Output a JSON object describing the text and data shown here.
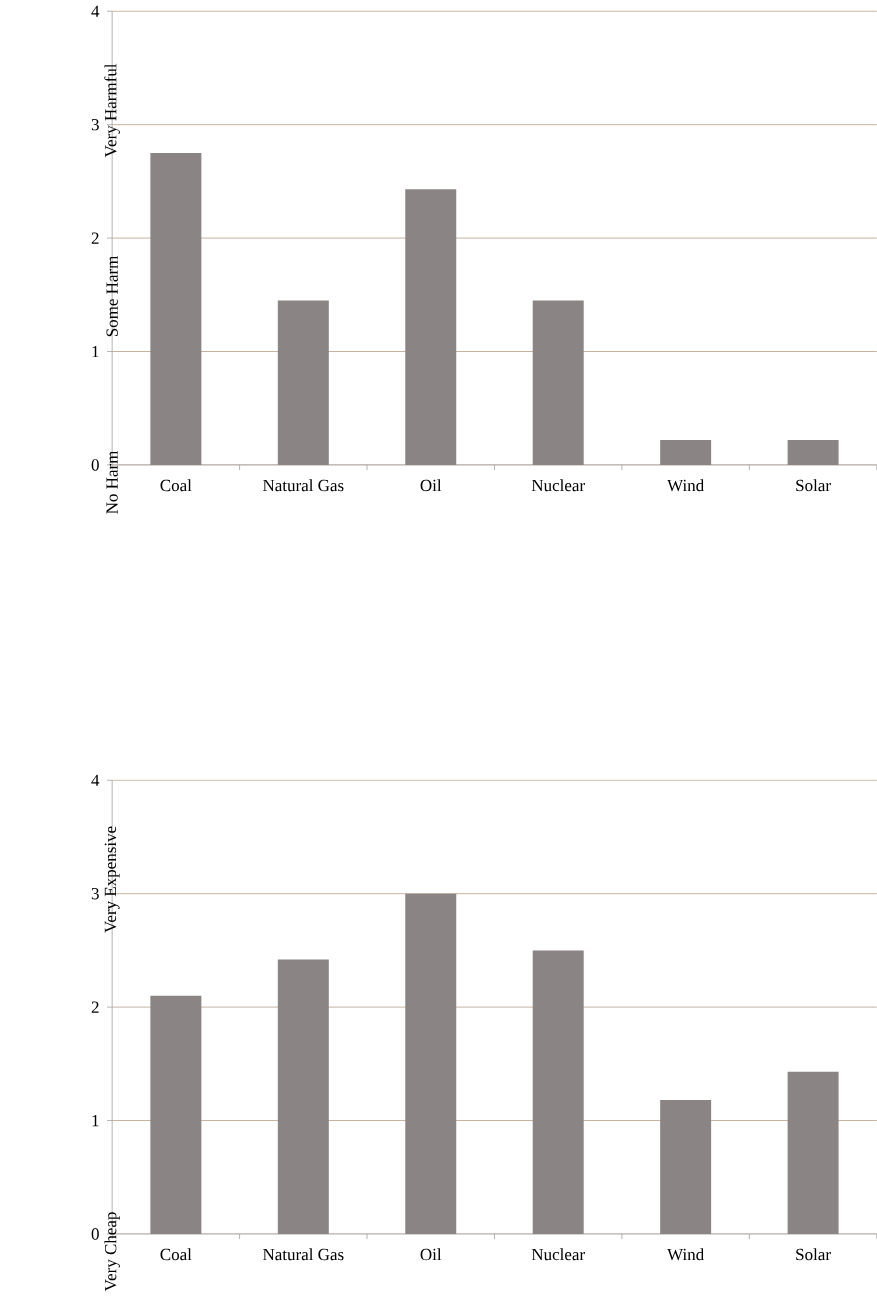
{
  "chart_data": [
    {
      "type": "bar",
      "categories": [
        "Coal",
        "Natural Gas",
        "Oil",
        "Nuclear",
        "Wind",
        "Solar"
      ],
      "values": [
        2.75,
        1.45,
        2.43,
        1.45,
        0.22,
        0.22
      ],
      "color": "#8a8584",
      "ylim": [
        0,
        4
      ],
      "yticks": [
        0,
        1,
        2,
        3,
        4
      ],
      "annotations": [
        "No Harm",
        "Some Harm",
        "Very Harmful"
      ],
      "grid": "y"
    },
    {
      "type": "bar",
      "categories": [
        "Coal",
        "Natural Gas",
        "Oil",
        "Nuclear",
        "Wind",
        "Solar"
      ],
      "values": [
        2.1,
        2.42,
        3.0,
        2.5,
        1.18,
        1.43
      ],
      "color": "#8a8584",
      "ylim": [
        0,
        4
      ],
      "yticks": [
        0,
        1,
        2,
        3,
        4
      ],
      "annotations": [
        "Very Cheap",
        "Very Expensive"
      ],
      "grid": "y"
    }
  ]
}
